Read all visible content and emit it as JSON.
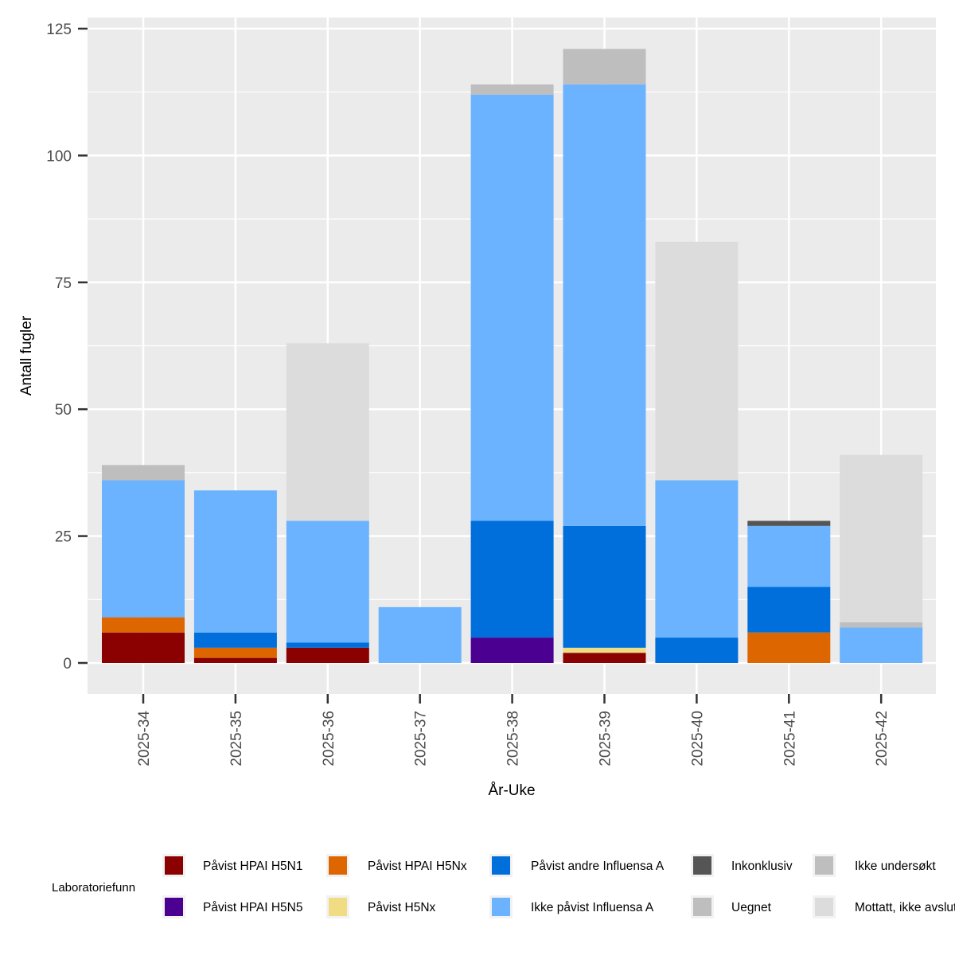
{
  "chart_data": {
    "type": "bar",
    "stacked": true,
    "xlabel": "År-Uke",
    "ylabel": "Antall fugler",
    "ylim": [
      -6,
      127
    ],
    "yticks": [
      0,
      25,
      50,
      75,
      100,
      125
    ],
    "grid": true,
    "legend_position": "bottom",
    "legend_title": "Laboratoriefunn",
    "categories": [
      "2025-34",
      "2025-35",
      "2025-36",
      "2025-37",
      "2025-38",
      "2025-39",
      "2025-40",
      "2025-41",
      "2025-42"
    ],
    "series": [
      {
        "name": "Påvist HPAI H5N1",
        "color": "#8B0000",
        "values": [
          6,
          1,
          3,
          0,
          0,
          2,
          0,
          0,
          0
        ]
      },
      {
        "name": "Påvist HPAI H5N5",
        "color": "#4B0092",
        "values": [
          0,
          0,
          0,
          0,
          5,
          0,
          0,
          0,
          0
        ]
      },
      {
        "name": "Påvist HPAI H5Nx",
        "color": "#DD6600",
        "values": [
          3,
          2,
          0,
          0,
          0,
          0,
          0,
          6,
          0
        ]
      },
      {
        "name": "Påvist H5Nx",
        "color": "#F0DC82",
        "values": [
          0,
          0,
          0,
          0,
          0,
          1,
          0,
          0,
          0
        ]
      },
      {
        "name": "Påvist andre Influensa A",
        "color": "#006EDB",
        "values": [
          0,
          3,
          1,
          0,
          23,
          24,
          5,
          9,
          0
        ]
      },
      {
        "name": "Ikke påvist Influensa A",
        "color": "#6BB3FF",
        "values": [
          27,
          28,
          24,
          11,
          84,
          87,
          31,
          12,
          7
        ]
      },
      {
        "name": "Inkonklusiv",
        "color": "#555555",
        "values": [
          0,
          0,
          0,
          0,
          0,
          0,
          0,
          1,
          0
        ]
      },
      {
        "name": "Uegnet",
        "color": "#BEBEBE",
        "values": [
          0,
          0,
          0,
          0,
          0,
          0,
          0,
          0,
          0
        ]
      },
      {
        "name": "Ikke undersøkt",
        "color": "#BEBEBE",
        "values": [
          3,
          0,
          0,
          0,
          2,
          7,
          0,
          0,
          1
        ]
      },
      {
        "name": "Mottatt, ikke avsluttet",
        "color": "#DCDCDC",
        "values": [
          0,
          0,
          35,
          0,
          0,
          0,
          47,
          0,
          33
        ]
      }
    ]
  }
}
